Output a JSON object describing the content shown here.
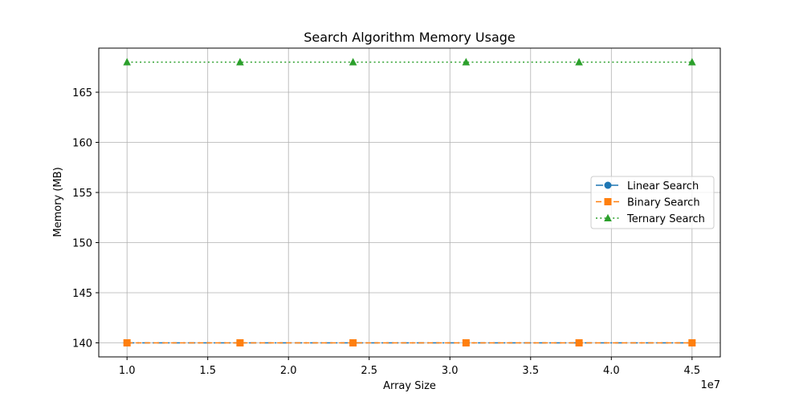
{
  "chart_data": {
    "type": "line",
    "title": "Search Algorithm Memory Usage",
    "xlabel": "Array Size",
    "ylabel": "Memory (MB)",
    "x_offset_label": "1e7",
    "xlim": [
      8250000,
      46750000
    ],
    "ylim": [
      138.6,
      169.4
    ],
    "x_ticks": [
      10000000,
      15000000,
      20000000,
      25000000,
      30000000,
      35000000,
      40000000,
      45000000
    ],
    "x_tick_labels": [
      "1.0",
      "1.5",
      "2.0",
      "2.5",
      "3.0",
      "3.5",
      "4.0",
      "4.5"
    ],
    "y_ticks": [
      140,
      145,
      150,
      155,
      160,
      165
    ],
    "y_tick_labels": [
      "140",
      "145",
      "150",
      "155",
      "160",
      "165"
    ],
    "grid": true,
    "legend_position": "center-right",
    "x": [
      10000000,
      17000000,
      24000000,
      31000000,
      38000000,
      45000000
    ],
    "series": [
      {
        "name": "Linear Search",
        "values": [
          140,
          140,
          140,
          140,
          140,
          140
        ],
        "color": "#1f77b4",
        "marker": "circle",
        "linestyle": "dashdot"
      },
      {
        "name": "Binary Search",
        "values": [
          140,
          140,
          140,
          140,
          140,
          140
        ],
        "color": "#ff7f0e",
        "marker": "square",
        "linestyle": "dashed"
      },
      {
        "name": "Ternary Search",
        "values": [
          168,
          168,
          168,
          168,
          168,
          168
        ],
        "color": "#2ca02c",
        "marker": "triangle",
        "linestyle": "dotted"
      }
    ]
  }
}
